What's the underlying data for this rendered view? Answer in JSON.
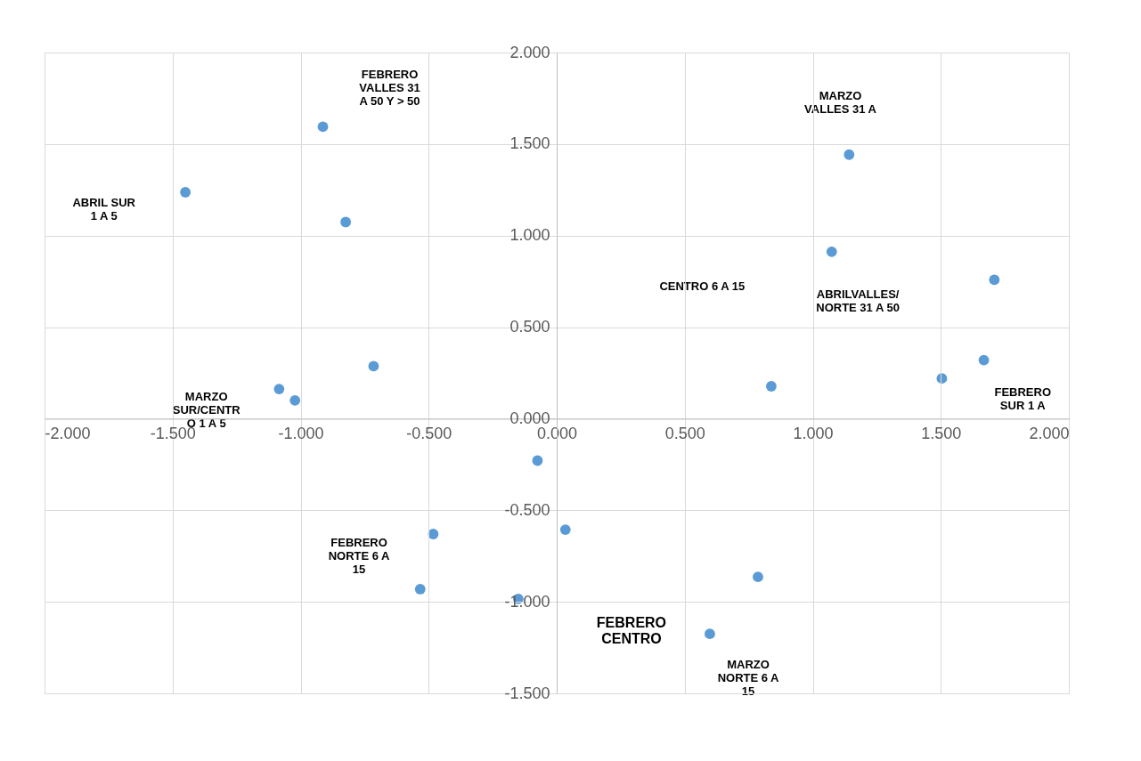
{
  "chart_data": {
    "type": "scatter",
    "x": [
      -0.913,
      -0.824,
      -1.45,
      -0.715,
      -1.084,
      -1.022,
      1.142,
      1.074,
      1.709,
      1.504,
      1.668,
      0.838,
      -0.075,
      0.034,
      -0.482,
      -0.533,
      -0.15,
      0.786,
      0.598
    ],
    "values": [
      1.595,
      1.074,
      1.237,
      0.287,
      0.162,
      0.1,
      1.442,
      0.912,
      0.759,
      0.22,
      0.32,
      0.177,
      -0.229,
      -0.606,
      -0.63,
      -0.931,
      -0.984,
      -0.864,
      -1.175
    ],
    "color": "#5b9bd5",
    "marker": "circle",
    "xlim": [
      -2,
      2
    ],
    "ylim": [
      -1.5,
      2
    ],
    "xticks": [
      {
        "value": -2,
        "label": "-2.000"
      },
      {
        "value": -1.5,
        "label": "-1.500"
      },
      {
        "value": -1,
        "label": "-1.000"
      },
      {
        "value": -0.5,
        "label": "-0.500"
      },
      {
        "value": 0,
        "label": "0.000"
      },
      {
        "value": 0.5,
        "label": "0.500"
      },
      {
        "value": 1,
        "label": "1.000"
      },
      {
        "value": 1.5,
        "label": "1.500"
      },
      {
        "value": 2,
        "label": "2.000"
      }
    ],
    "yticks": [
      {
        "value": -1.5,
        "label": "-1.500"
      },
      {
        "value": -1,
        "label": "-1.000"
      },
      {
        "value": -0.5,
        "label": "-0.500"
      },
      {
        "value": 0,
        "label": "0.000"
      },
      {
        "value": 0.5,
        "label": "0.500"
      },
      {
        "value": 1,
        "label": "1.000"
      },
      {
        "value": 1.5,
        "label": "1.500"
      },
      {
        "value": 2,
        "label": "2.000"
      }
    ],
    "grid": true,
    "annotations": [
      "FEBRERO\nVALLES 31\nA 50 Y > 50",
      "MARZO\nVALLES 31 A",
      "ABRIL SUR\n1 A 5",
      "CENTRO  6 A 15",
      "ABRILVALLES/\nNORTE 31 A 50",
      "MARZO\nSUR/CENTR\nO 1 A 5",
      "FEBRERO\nSUR 1 A",
      "FEBRERO\nNORTE 6 A\n15",
      "FEBRERO\nCENTRO",
      "MARZO\nNORTE 6 A\n15"
    ]
  }
}
